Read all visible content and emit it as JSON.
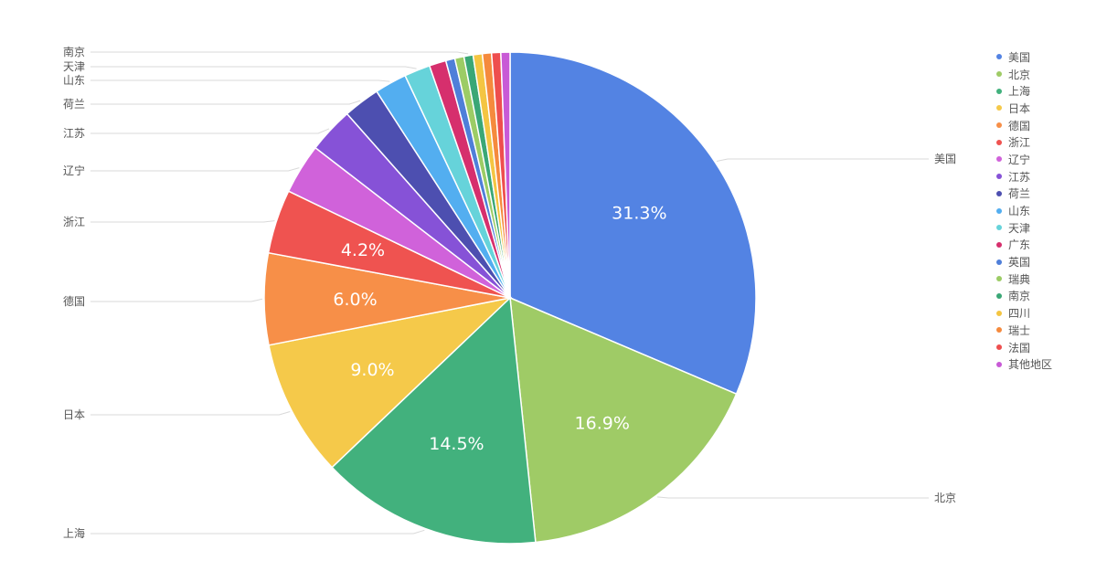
{
  "chart_data": {
    "type": "pie",
    "title": "",
    "slices": [
      {
        "label": "美国",
        "value": 31.3,
        "color": "#5383e3",
        "value_label": "31.3%",
        "callout": true
      },
      {
        "label": "北京",
        "value": 16.9,
        "color": "#9fcb66",
        "value_label": "16.9%",
        "callout": true
      },
      {
        "label": "上海",
        "value": 14.5,
        "color": "#42b17d",
        "value_label": "14.5%",
        "callout": true
      },
      {
        "label": "日本",
        "value": 9.0,
        "color": "#f5c94a",
        "value_label": "9.0%",
        "callout": true
      },
      {
        "label": "德国",
        "value": 6.0,
        "color": "#f78f48",
        "value_label": "6.0%",
        "callout": true
      },
      {
        "label": "浙江",
        "value": 4.2,
        "color": "#ef5350",
        "value_label": "4.2%",
        "callout": true
      },
      {
        "label": "辽宁",
        "value": 3.3,
        "color": "#d062da",
        "value_label": "",
        "callout": true
      },
      {
        "label": "江苏",
        "value": 3.0,
        "color": "#8652d7",
        "value_label": "",
        "callout": true
      },
      {
        "label": "荷兰",
        "value": 2.4,
        "color": "#4d4fb0",
        "value_label": "",
        "callout": true
      },
      {
        "label": "山东",
        "value": 2.1,
        "color": "#53aef0",
        "value_label": "",
        "callout": true
      },
      {
        "label": "天津",
        "value": 1.7,
        "color": "#66d3da",
        "value_label": "",
        "callout": true
      },
      {
        "label": "广东",
        "value": 1.1,
        "color": "#d62f6d",
        "value_label": "",
        "callout": false
      },
      {
        "label": "英国",
        "value": 0.6,
        "color": "#4f7fd9",
        "value_label": "",
        "callout": false
      },
      {
        "label": "瑞典",
        "value": 0.6,
        "color": "#9ccc65",
        "value_label": "",
        "callout": false
      },
      {
        "label": "南京",
        "value": 0.6,
        "color": "#3aa776",
        "value_label": "",
        "callout": true
      },
      {
        "label": "四川",
        "value": 0.6,
        "color": "#f4c542",
        "value_label": "",
        "callout": false
      },
      {
        "label": "瑞士",
        "value": 0.6,
        "color": "#f58a3d",
        "value_label": "",
        "callout": false
      },
      {
        "label": "法国",
        "value": 0.6,
        "color": "#ee4e4e",
        "value_label": "",
        "callout": false
      },
      {
        "label": "其他地区",
        "value": 0.6,
        "color": "#c85ad6",
        "value_label": "",
        "callout": false
      }
    ],
    "legend_position": "right"
  }
}
